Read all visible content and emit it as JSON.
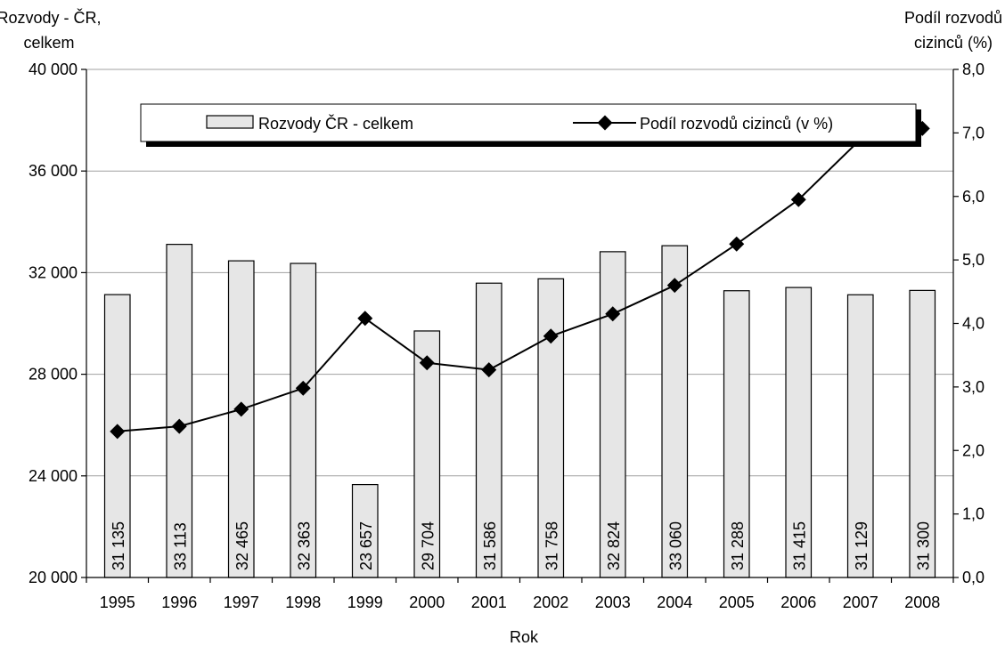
{
  "chart_data": {
    "type": "bar",
    "xlabel": "Rok",
    "ylabel_left": [
      "Rozvody - ČR,",
      "celkem"
    ],
    "ylabel_right": [
      "Podíl rozvodů",
      "cizinců (%)"
    ],
    "categories": [
      "1995",
      "1996",
      "1997",
      "1998",
      "1999",
      "2000",
      "2001",
      "2002",
      "2003",
      "2004",
      "2005",
      "2006",
      "2007",
      "2008"
    ],
    "series": [
      {
        "name": "Rozvody ČR - celkem",
        "type": "bar",
        "axis": "left",
        "values": [
          31135,
          33113,
          32465,
          32363,
          23657,
          29704,
          31586,
          31758,
          32824,
          33060,
          31288,
          31415,
          31129,
          31300
        ],
        "labels": [
          "31 135",
          "33 113",
          "32 465",
          "32 363",
          "23 657",
          "29 704",
          "31 586",
          "31 758",
          "32 824",
          "33 060",
          "31 288",
          "31 415",
          "31 129",
          "31 300"
        ]
      },
      {
        "name": "Podíl rozvodů cizinců (v %)",
        "type": "line",
        "axis": "right",
        "values": [
          2.3,
          2.38,
          2.65,
          2.98,
          4.08,
          3.38,
          3.27,
          3.8,
          4.15,
          4.6,
          5.25,
          5.95,
          6.9,
          7.07
        ]
      }
    ],
    "ylim_left": [
      20000,
      40000
    ],
    "yticks_left": [
      20000,
      24000,
      28000,
      32000,
      36000,
      40000
    ],
    "yticklabels_left": [
      "20 000",
      "24 000",
      "28 000",
      "32 000",
      "36 000",
      "40 000"
    ],
    "ylim_right": [
      0,
      8
    ],
    "yticks_right": [
      0,
      1,
      2,
      3,
      4,
      5,
      6,
      7,
      8
    ],
    "yticklabels_right": [
      "0,0",
      "1,0",
      "2,0",
      "3,0",
      "4,0",
      "5,0",
      "6,0",
      "7,0",
      "8,0"
    ],
    "grid": true,
    "legend_position": "top",
    "colors": {
      "bar_fill": "#e6e6e6",
      "bar_stroke": "#000000",
      "line": "#000000",
      "grid": "#a0a0a0"
    }
  }
}
